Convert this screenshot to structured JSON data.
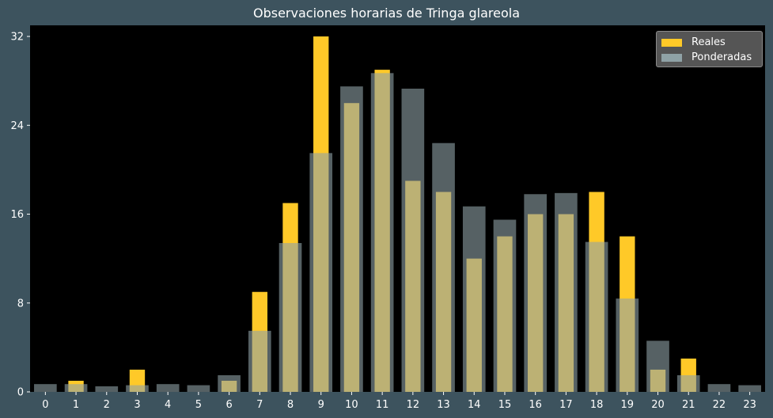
{
  "chart_data": {
    "type": "bar",
    "title": "Observaciones horarias de Tringa glareola",
    "xlabel": "",
    "ylabel": "",
    "categories": [
      "0",
      "1",
      "2",
      "3",
      "4",
      "5",
      "6",
      "7",
      "8",
      "9",
      "10",
      "11",
      "12",
      "13",
      "14",
      "15",
      "16",
      "17",
      "18",
      "19",
      "20",
      "21",
      "22",
      "23"
    ],
    "ylim": [
      0,
      33
    ],
    "yticks": [
      0,
      8,
      16,
      24,
      32
    ],
    "grid": false,
    "legend_position": "top-right",
    "series": [
      {
        "name": "Reales",
        "color": "#ffc928",
        "values": [
          0,
          1,
          0,
          2,
          0,
          0,
          1,
          9,
          17,
          32,
          26,
          29,
          19,
          18,
          12,
          14,
          16,
          16,
          18,
          14,
          2,
          3,
          0,
          0
        ]
      },
      {
        "name": "Ponderadas",
        "color": "#8fa2a6",
        "values": [
          0.7,
          0.7,
          0.5,
          0.6,
          0.7,
          0.6,
          1.5,
          5.5,
          13.4,
          21.5,
          27.5,
          28.7,
          27.3,
          22.4,
          16.7,
          15.5,
          17.8,
          17.9,
          13.5,
          8.4,
          4.6,
          1.5,
          0.7,
          0.6
        ]
      }
    ]
  }
}
